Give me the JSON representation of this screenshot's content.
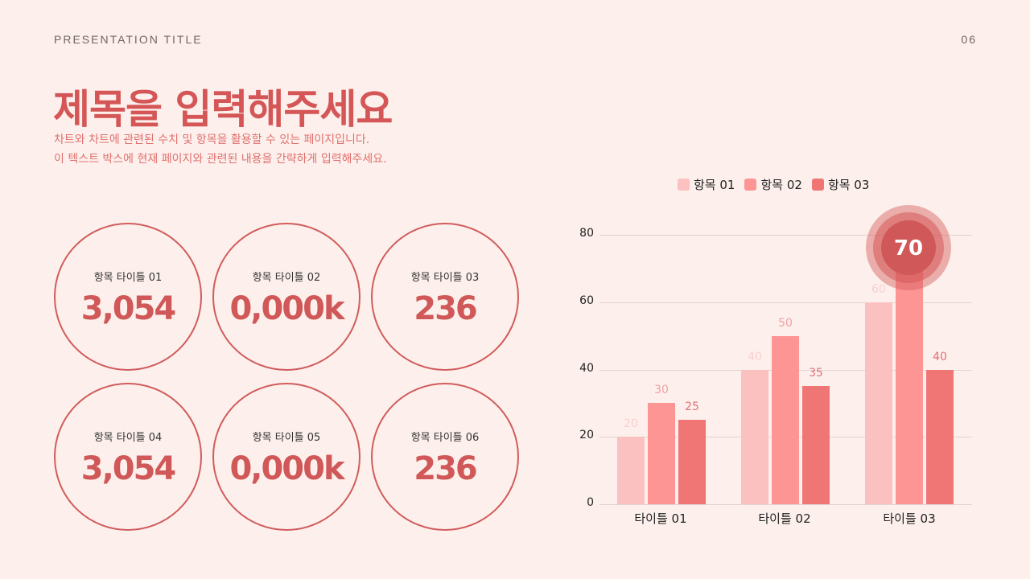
{
  "header": {
    "presentation_title": "PRESENTATION TITLE",
    "page_number": "06"
  },
  "title": "제목을 입력해주세요",
  "description": [
    "차트와 차트에 관련된 수치 및 항목을 활용할 수 있는 페이지입니다.",
    "이 텍스트 박스에 현재 페이지와 관련된 내용을 간략하게 입력해주세요."
  ],
  "stats": [
    {
      "label": "항목 타이틀 01",
      "value": "3,054"
    },
    {
      "label": "항목 타이틀 02",
      "value": "0,000k"
    },
    {
      "label": "항목 타이틀 03",
      "value": "236"
    },
    {
      "label": "항목 타이틀 04",
      "value": "3,054"
    },
    {
      "label": "항목 타이틀 05",
      "value": "0,000k"
    },
    {
      "label": "항목 타이틀 06",
      "value": "236"
    }
  ],
  "colors": {
    "accent": "#d45656",
    "series1": "#fbc1c1",
    "series2": "#fd9594",
    "series3": "#f07675",
    "background": "#fdf0ec"
  },
  "highlight": {
    "value": "70",
    "category": "타이틀 03",
    "series": "항목 02"
  },
  "chart_data": {
    "type": "bar",
    "categories": [
      "타이틀 01",
      "타이틀 02",
      "타이틀 03"
    ],
    "series": [
      {
        "name": "항목 01",
        "values": [
          20,
          40,
          60
        ]
      },
      {
        "name": "항목 02",
        "values": [
          30,
          50,
          70
        ]
      },
      {
        "name": "항목 03",
        "values": [
          25,
          35,
          40
        ]
      }
    ],
    "yticks": [
      "0",
      "20",
      "40",
      "60",
      "80"
    ],
    "ylim": [
      0,
      80
    ],
    "title": "",
    "xlabel": "",
    "ylabel": "",
    "grid": true,
    "legend_position": "top"
  }
}
